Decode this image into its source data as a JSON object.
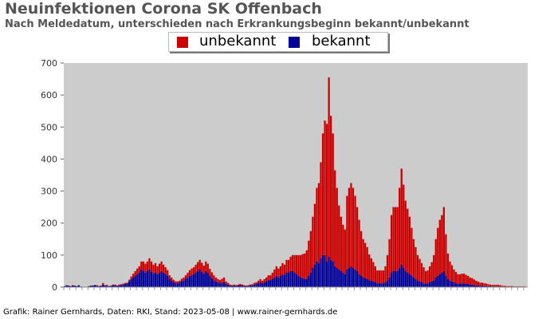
{
  "header": {
    "title": "Neuinfektionen Corona SK Offenbach",
    "subtitle": "Nach Meldedatum, unterschieden nach Erkrankungsbeginn bekannt/unbekannt"
  },
  "footer": {
    "credit": "Grafik: Rainer Gernhards, Daten: RKI, Stand: 2023-05-08 | www.rainer-gernhards.de"
  },
  "colors": {
    "unbekannt": "#cc0000",
    "bekannt": "#000099",
    "plot_background": "#cccccc"
  },
  "chart_data": {
    "type": "bar",
    "stacked": true,
    "legend": "top-center",
    "grid": false,
    "title": "Neuinfektionen Corona SK Offenbach",
    "subtitle": "Nach Meldedatum, unterschieden nach Erkrankungsbeginn bekannt/unbekannt",
    "ylim": [
      0,
      700
    ],
    "yticks": [
      0,
      100,
      200,
      300,
      400,
      500,
      600,
      700
    ],
    "x_tick_labels_note": "dense rotated date labels, not legible",
    "series": [
      {
        "name": "unbekannt",
        "color": "#cc0000",
        "values": [
          0,
          1,
          1,
          0,
          1,
          1,
          0,
          1,
          0,
          0,
          0,
          0,
          0,
          1,
          0,
          1,
          2,
          0,
          1,
          5,
          1,
          3,
          0,
          1,
          2,
          3,
          1,
          3,
          2,
          3,
          3,
          2,
          5,
          8,
          12,
          15,
          18,
          20,
          25,
          30,
          28,
          30,
          35,
          32,
          28,
          30,
          25,
          28,
          30,
          25,
          22,
          18,
          12,
          10,
          8,
          6,
          6,
          5,
          8,
          10,
          12,
          15,
          18,
          20,
          22,
          25,
          28,
          30,
          28,
          25,
          30,
          28,
          22,
          18,
          15,
          12,
          10,
          10,
          12,
          15,
          8,
          5,
          3,
          2,
          3,
          2,
          3,
          4,
          3,
          2,
          2,
          2,
          3,
          3,
          5,
          5,
          8,
          10,
          8,
          10,
          12,
          15,
          15,
          20,
          25,
          30,
          28,
          30,
          35,
          32,
          40,
          40,
          45,
          50,
          55,
          60,
          65,
          70,
          75,
          80,
          90,
          110,
          130,
          160,
          190,
          230,
          250,
          300,
          380,
          420,
          430,
          560,
          450,
          400,
          300,
          250,
          200,
          170,
          150,
          140,
          230,
          250,
          260,
          250,
          230,
          200,
          170,
          140,
          120,
          110,
          100,
          80,
          70,
          60,
          50,
          40,
          40,
          40,
          40,
          50,
          80,
          120,
          180,
          200,
          200,
          200,
          250,
          300,
          260,
          220,
          200,
          180,
          150,
          120,
          100,
          80,
          70,
          60,
          50,
          40,
          40,
          50,
          60,
          80,
          120,
          150,
          170,
          180,
          200,
          130,
          80,
          60,
          50,
          40,
          35,
          30,
          30,
          30,
          30,
          28,
          25,
          22,
          20,
          18,
          15,
          12,
          10,
          10,
          8,
          8,
          6,
          5,
          5,
          5,
          5,
          5,
          4,
          3,
          3,
          2,
          2,
          2,
          2,
          1,
          1,
          1,
          1,
          1,
          1,
          0
        ]
      },
      {
        "name": "bekannt",
        "color": "#000099",
        "values": [
          3,
          5,
          4,
          3,
          5,
          4,
          3,
          5,
          2,
          1,
          1,
          1,
          3,
          4,
          5,
          6,
          4,
          3,
          4,
          8,
          5,
          4,
          3,
          4,
          6,
          5,
          4,
          5,
          7,
          8,
          10,
          12,
          18,
          25,
          30,
          35,
          40,
          45,
          55,
          50,
          45,
          50,
          55,
          48,
          42,
          45,
          40,
          45,
          50,
          45,
          40,
          35,
          25,
          20,
          15,
          12,
          12,
          15,
          18,
          20,
          25,
          30,
          35,
          38,
          40,
          45,
          50,
          55,
          48,
          42,
          50,
          45,
          35,
          28,
          22,
          18,
          15,
          12,
          14,
          15,
          10,
          8,
          5,
          4,
          5,
          4,
          5,
          6,
          5,
          4,
          3,
          4,
          5,
          6,
          8,
          10,
          12,
          15,
          12,
          15,
          18,
          22,
          22,
          25,
          30,
          35,
          30,
          35,
          40,
          38,
          45,
          45,
          50,
          50,
          45,
          40,
          35,
          30,
          28,
          25,
          25,
          35,
          45,
          60,
          70,
          80,
          75,
          90,
          100,
          100,
          80,
          95,
          85,
          80,
          65,
          60,
          55,
          50,
          45,
          40,
          55,
          60,
          65,
          60,
          55,
          50,
          40,
          35,
          30,
          28,
          25,
          22,
          20,
          18,
          15,
          12,
          12,
          12,
          12,
          15,
          20,
          30,
          45,
          50,
          50,
          50,
          60,
          70,
          60,
          50,
          45,
          40,
          35,
          30,
          25,
          20,
          18,
          15,
          12,
          10,
          12,
          15,
          18,
          20,
          30,
          35,
          40,
          45,
          50,
          35,
          25,
          20,
          18,
          15,
          12,
          10,
          10,
          12,
          12,
          10,
          10,
          8,
          8,
          6,
          5,
          5,
          4,
          4,
          4,
          3,
          3,
          3,
          2,
          2,
          2,
          2,
          2,
          1,
          1,
          1,
          1,
          1,
          1,
          1,
          1,
          1,
          1,
          1,
          1,
          0
        ]
      }
    ]
  }
}
